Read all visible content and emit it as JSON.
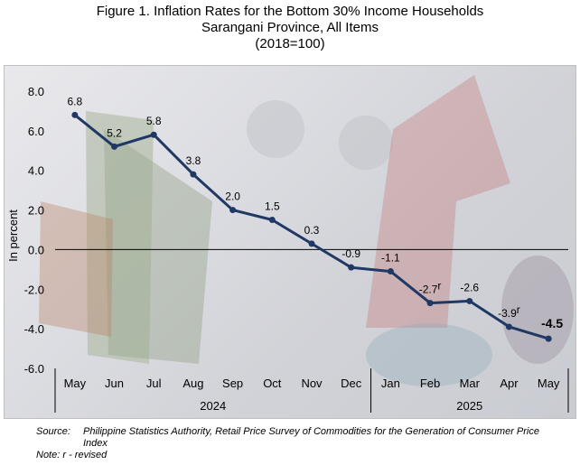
{
  "header": {
    "title_line1": "Figure 1. Inflation Rates for the Bottom 30% Income Households",
    "title_line2": "Sarangani Province, All Items",
    "title_line3": "(2018=100)"
  },
  "colors": {
    "line": "#1f3864",
    "marker": "#1f3864",
    "axis": "#000000"
  },
  "chart_data": {
    "type": "line",
    "title": "Figure 1. Inflation Rates for the Bottom 30% Income Households Sarangani Province, All Items (2018=100)",
    "ylabel": "In percent",
    "xlabel": "",
    "ylim": [
      -6.0,
      8.0
    ],
    "yticks": [
      "8.0",
      "6.0",
      "4.0",
      "2.0",
      "0.0",
      "-2.0",
      "-4.0",
      "-6.0"
    ],
    "categories": [
      "May",
      "Jun",
      "Jul",
      "Aug",
      "Sep",
      "Oct",
      "Nov",
      "Dec",
      "Jan",
      "Feb",
      "Mar",
      "Apr",
      "May"
    ],
    "year_groups": [
      {
        "label": "2024",
        "start": 0,
        "end": 7
      },
      {
        "label": "2025",
        "start": 8,
        "end": 12
      }
    ],
    "series": [
      {
        "values": [
          6.8,
          5.2,
          5.8,
          3.8,
          2.0,
          1.5,
          0.3,
          -0.9,
          -1.1,
          -2.7,
          -2.6,
          -3.9,
          -4.5
        ]
      }
    ],
    "data_labels": [
      "6.8",
      "5.2",
      "5.8",
      "3.8",
      "2.0",
      "1.5",
      "0.3",
      "-0.9",
      "-1.1",
      "-2.7",
      "-2.6",
      "-3.9",
      "-4.5"
    ],
    "revised_marks": [
      "",
      "",
      "",
      "",
      "",
      "",
      "",
      "",
      "",
      "r",
      "",
      "r",
      ""
    ],
    "grid": false,
    "legend": "none"
  },
  "footer": {
    "source_label": "Source:",
    "source_text": "Philippine Statistics Authority, Retail Price Survey of Commodities for the Generation of Consumer Price Index",
    "note": "Note: r - revised"
  }
}
